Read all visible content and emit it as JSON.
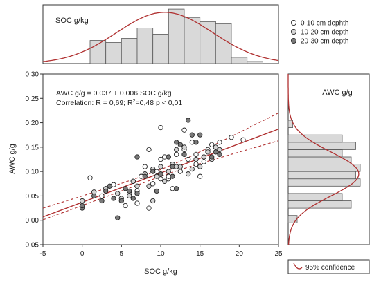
{
  "chart_data": [
    {
      "type": "scatter",
      "xlabel": "SOC g/kg",
      "ylabel": "AWC g/g",
      "xlim": [
        -5,
        25
      ],
      "ylim": [
        -0.05,
        0.3
      ],
      "xticks": [
        "-5",
        "0",
        "5",
        "10",
        "15",
        "20",
        "25"
      ],
      "yticks": [
        "-0,05",
        "0,00",
        "0,05",
        "0,10",
        "0,15",
        "0,20",
        "0,25",
        "0,30"
      ],
      "annotation_line1": "AWC g/g = 0.037 + 0.006 SOC g/kg",
      "annotation_line2_prefix": "Correlation: R = 0,69; R",
      "annotation_line2_sup": "2",
      "annotation_line2_suffix": "=0,48 p < 0,01",
      "regression": {
        "intercept": 0.037,
        "slope": 0.006
      },
      "confidence_band": {
        "lower_at_xmin": 0.013,
        "lower_at_xmax": 0.163,
        "upper_at_xmin": 0.025,
        "upper_at_xmax": 0.22,
        "center_x": 9.5,
        "center_halfwidth": 0.007
      },
      "legend_title": "95% confidence",
      "legend": [
        {
          "label": "0-10 cm dephth",
          "fill": "#ffffff"
        },
        {
          "label": "10-20 cm depth",
          "fill": "#d4d4d4"
        },
        {
          "label": "20-30 cm depth",
          "fill": "#7a7a7a"
        }
      ],
      "series": [
        {
          "name": "0-10 cm dephth",
          "fill": "#ffffff",
          "points": [
            [
              1,
              0.087
            ],
            [
              2.5,
              0.05
            ],
            [
              4,
              0.073
            ],
            [
              5.5,
              0.03
            ],
            [
              6,
              0.055
            ],
            [
              7,
              0.06
            ],
            [
              7.5,
              0.09
            ],
            [
              8,
              0.11
            ],
            [
              8.5,
              0.145
            ],
            [
              9,
              0.075
            ],
            [
              9.5,
              0.1
            ],
            [
              10,
              0.19
            ],
            [
              10,
              0.125
            ],
            [
              10.5,
              0.13
            ],
            [
              11,
              0.085
            ],
            [
              11.5,
              0.065
            ],
            [
              12,
              0.135
            ],
            [
              12.5,
              0.1
            ],
            [
              13,
              0.185
            ],
            [
              13.5,
              0.125
            ],
            [
              14,
              0.16
            ],
            [
              14.5,
              0.135
            ],
            [
              15,
              0.09
            ],
            [
              15.5,
              0.12
            ],
            [
              16,
              0.145
            ],
            [
              16.5,
              0.155
            ],
            [
              17.5,
              0.16
            ],
            [
              19,
              0.17
            ],
            [
              20.5,
              0.165
            ],
            [
              11,
              0.09
            ],
            [
              7,
              0.035
            ],
            [
              8.5,
              0.025
            ],
            [
              13,
              0.145
            ],
            [
              6.5,
              0.08
            ],
            [
              10,
              0.085
            ],
            [
              14.5,
              0.115
            ]
          ]
        },
        {
          "name": "10-20 cm depth",
          "fill": "#d4d4d4",
          "points": [
            [
              0,
              0.04
            ],
            [
              1.5,
              0.058
            ],
            [
              3,
              0.065
            ],
            [
              4.5,
              0.055
            ],
            [
              5,
              0.045
            ],
            [
              6,
              0.05
            ],
            [
              6.5,
              0.08
            ],
            [
              7,
              0.07
            ],
            [
              8,
              0.095
            ],
            [
              8.5,
              0.07
            ],
            [
              9,
              0.105
            ],
            [
              9.5,
              0.09
            ],
            [
              10,
              0.11
            ],
            [
              10.5,
              0.08
            ],
            [
              11,
              0.1
            ],
            [
              11.5,
              0.115
            ],
            [
              12,
              0.11
            ],
            [
              12.5,
              0.11
            ],
            [
              13,
              0.15
            ],
            [
              13.5,
              0.095
            ],
            [
              14,
              0.105
            ],
            [
              14.5,
              0.125
            ],
            [
              15,
              0.11
            ],
            [
              15.5,
              0.13
            ],
            [
              16,
              0.14
            ],
            [
              17,
              0.15
            ],
            [
              17.5,
              0.145
            ],
            [
              9,
              0.04
            ],
            [
              12,
              0.145
            ],
            [
              16.5,
              0.125
            ]
          ]
        },
        {
          "name": "20-30 cm depth",
          "fill": "#7a7a7a",
          "points": [
            [
              0,
              0.025
            ],
            [
              0,
              0.03
            ],
            [
              1.5,
              0.05
            ],
            [
              2.5,
              0.04
            ],
            [
              3,
              0.06
            ],
            [
              3.5,
              0.07
            ],
            [
              4,
              0.045
            ],
            [
              4.5,
              0.005
            ],
            [
              5,
              0.04
            ],
            [
              5.5,
              0.065
            ],
            [
              6,
              0.06
            ],
            [
              6.5,
              0.045
            ],
            [
              7,
              0.055
            ],
            [
              7,
              0.13
            ],
            [
              8,
              0.09
            ],
            [
              9,
              0.1
            ],
            [
              9.5,
              0.06
            ],
            [
              10,
              0.095
            ],
            [
              11,
              0.13
            ],
            [
              11.5,
              0.11
            ],
            [
              12,
              0.065
            ],
            [
              12.5,
              0.155
            ],
            [
              13,
              0.135
            ],
            [
              13.5,
              0.205
            ],
            [
              14,
              0.175
            ],
            [
              14.5,
              0.16
            ],
            [
              15,
              0.175
            ],
            [
              16.5,
              0.13
            ],
            [
              17,
              0.14
            ],
            [
              17.5,
              0.135
            ],
            [
              12,
              0.16
            ],
            [
              11.5,
              0.09
            ]
          ]
        }
      ]
    },
    {
      "type": "bar",
      "title": "SOC g/kg",
      "orientation": "vertical",
      "bins": [
        [
          -5,
          -3
        ],
        [
          -3,
          -1
        ],
        [
          -1,
          1
        ],
        [
          1,
          3
        ],
        [
          3,
          5
        ],
        [
          5,
          7
        ],
        [
          7,
          9
        ],
        [
          9,
          11
        ],
        [
          11,
          13
        ],
        [
          13,
          15
        ],
        [
          15,
          17
        ],
        [
          17,
          19
        ],
        [
          19,
          21
        ],
        [
          21,
          23
        ],
        [
          23,
          25
        ]
      ],
      "values": [
        0,
        0,
        0,
        11,
        10,
        12,
        17,
        14,
        26,
        22,
        20,
        19,
        3,
        1,
        0
      ],
      "ylim": [
        0,
        28
      ],
      "normal_fit": {
        "mean": 10.5,
        "sd": 6.1
      }
    },
    {
      "type": "bar",
      "title": "AWC g/g",
      "orientation": "horizontal",
      "bins": [
        [
          -0.05,
          -0.035
        ],
        [
          -0.035,
          -0.02
        ],
        [
          -0.02,
          -0.005
        ],
        [
          -0.005,
          0.01
        ],
        [
          0.01,
          0.025
        ],
        [
          0.025,
          0.04
        ],
        [
          0.04,
          0.055
        ],
        [
          0.055,
          0.07
        ],
        [
          0.07,
          0.085
        ],
        [
          0.085,
          0.1
        ],
        [
          0.1,
          0.115
        ],
        [
          0.115,
          0.13
        ],
        [
          0.13,
          0.145
        ],
        [
          0.145,
          0.16
        ],
        [
          0.16,
          0.175
        ],
        [
          0.175,
          0.19
        ],
        [
          0.19,
          0.205
        ],
        [
          0.205,
          0.22
        ]
      ],
      "values": [
        0,
        0,
        0,
        2,
        0,
        14,
        12,
        0,
        16,
        15,
        16,
        14,
        12,
        15,
        12,
        0,
        1,
        0
      ],
      "xlim": [
        0,
        18
      ],
      "normal_fit": {
        "mean": 0.095,
        "sd": 0.045
      }
    }
  ]
}
